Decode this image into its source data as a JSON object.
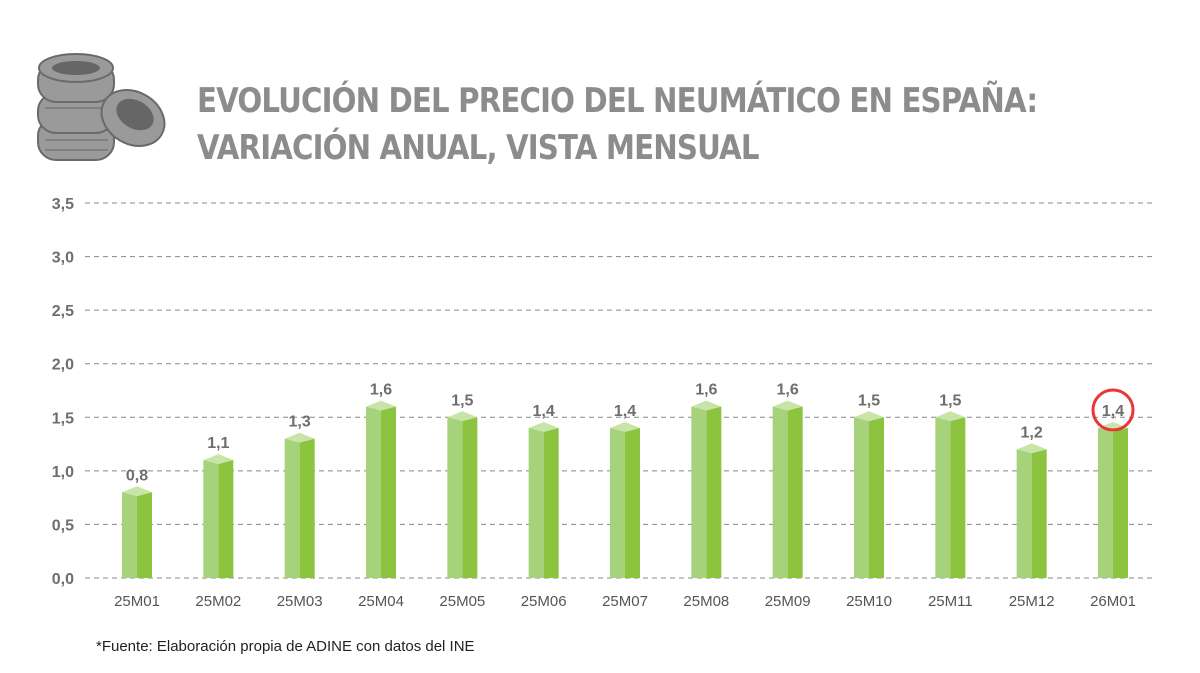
{
  "chart_data": {
    "type": "bar",
    "title": "EVOLUCIÓN DEL PRECIO DEL NEUMÁTICO EN ESPAÑA:",
    "subtitle": "VARIACIÓN ANUAL, VISTA MENSUAL",
    "categories": [
      "25M01",
      "25M02",
      "25M03",
      "25M04",
      "25M05",
      "25M06",
      "25M07",
      "25M08",
      "25M09",
      "25M10",
      "25M11",
      "25M12",
      "26M01"
    ],
    "values": [
      0.8,
      1.1,
      1.3,
      1.6,
      1.5,
      1.4,
      1.4,
      1.6,
      1.6,
      1.5,
      1.5,
      1.2,
      1.4
    ],
    "data_labels": [
      "0,8",
      "1,1",
      "1,3",
      "1,6",
      "1,5",
      "1,4",
      "1,4",
      "1,6",
      "1,6",
      "1,5",
      "1,5",
      "1,2",
      "1,4"
    ],
    "yticks": [
      "0,0",
      "0,5",
      "1,0",
      "1,5",
      "2,0",
      "2,5",
      "3,0",
      "3,5"
    ],
    "ylim": [
      0,
      3.5
    ],
    "grid": "horizontal dashed",
    "highlighted_category": "26M01",
    "colors": {
      "bar_light": "#a5d27a",
      "bar_dark": "#8cc43f",
      "bar_top": "#c8e4a8",
      "highlight_circle": "#e53935",
      "grid": "#888888"
    }
  },
  "source": "*Fuente: Elaboración propia de ADINE con datos del INE",
  "icon": "tire-stack-icon"
}
